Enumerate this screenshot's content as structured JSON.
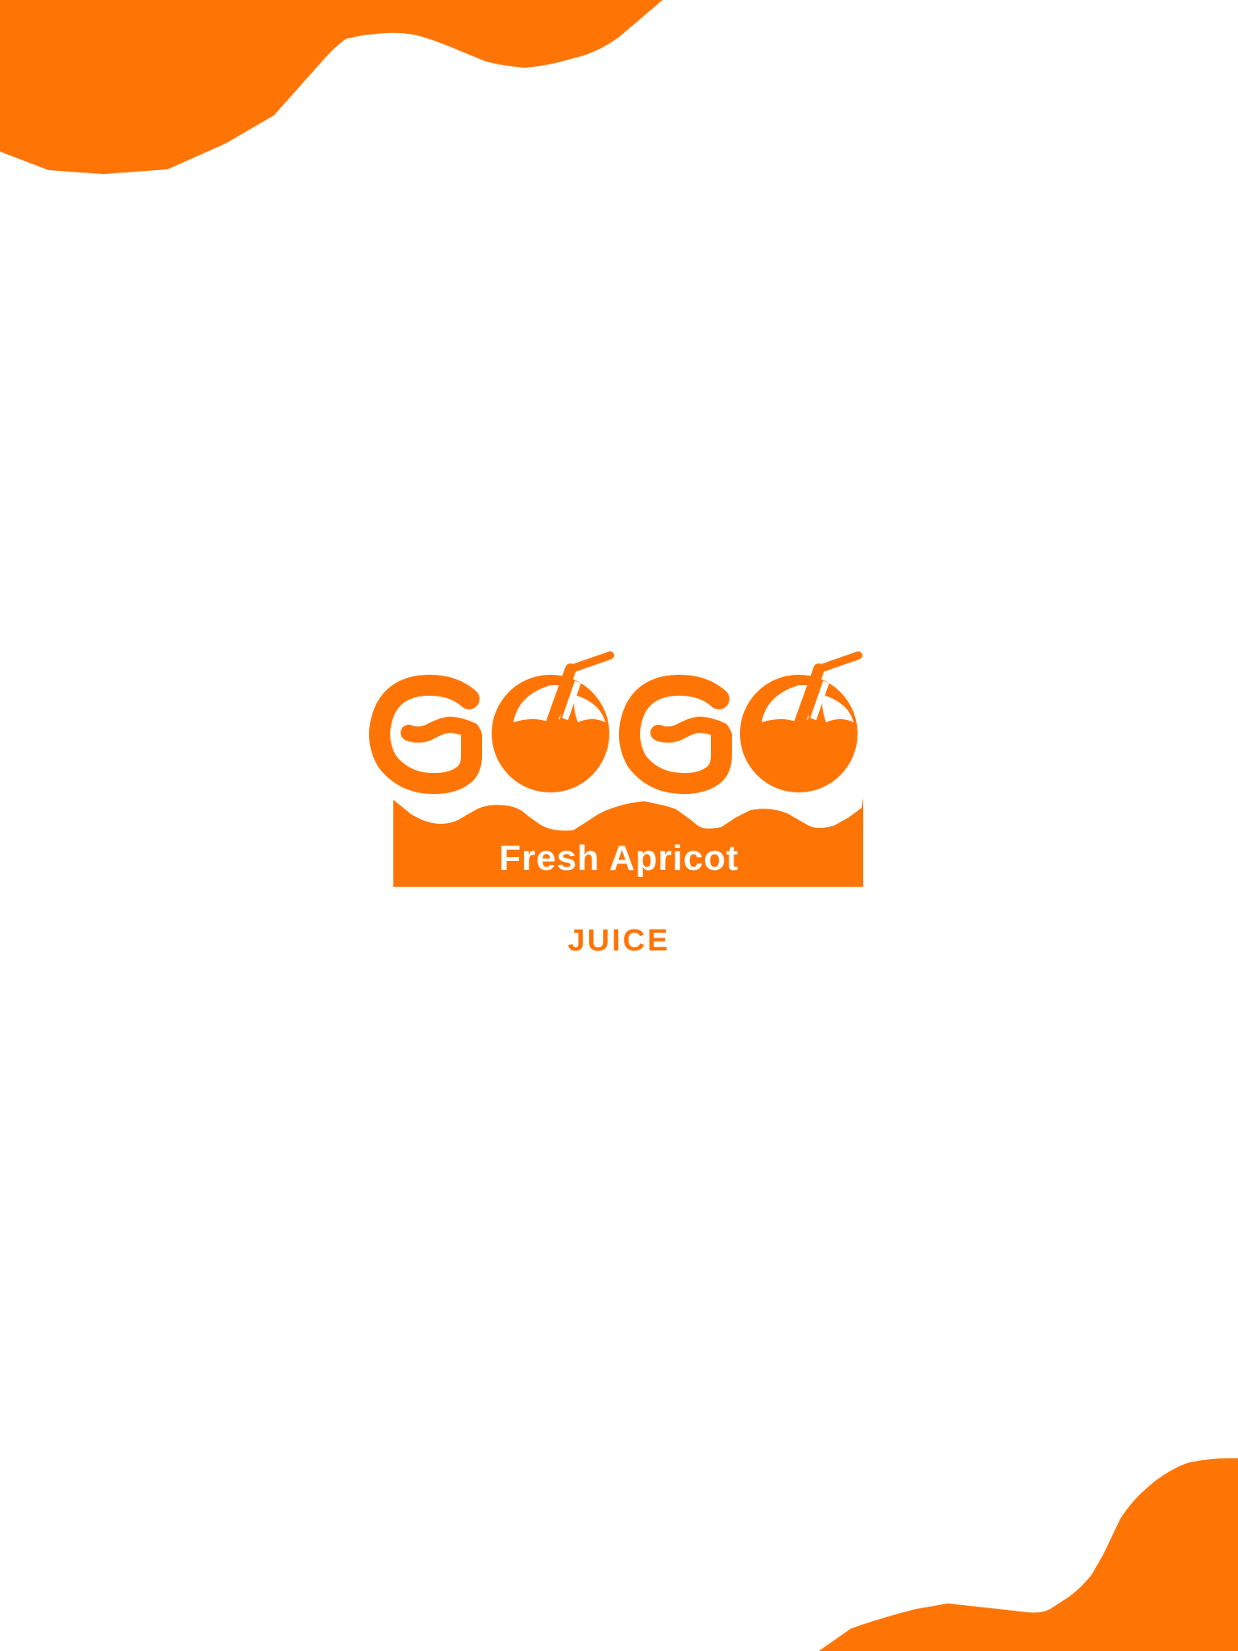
{
  "brand": {
    "logo_text": "GOGO",
    "banner_text": "Fresh Apricot",
    "sub_text": "JUICE"
  },
  "colors": {
    "accent": "#FF7505",
    "background": "#FFFFFF",
    "banner_text": "#FFFFFF"
  },
  "icons": {
    "corner_top_left": "orange-wave-shape",
    "corner_bottom_right": "orange-wave-shape",
    "logo": "apricot-straw-logo-icon"
  }
}
